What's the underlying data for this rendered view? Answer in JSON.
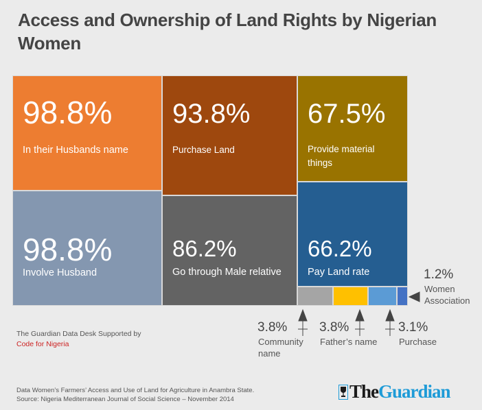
{
  "title": "Access and Ownership of Land Rights by Nigerian Women",
  "chart_data": {
    "type": "treemap",
    "title": "Access and Ownership of Land Rights by Nigerian Women",
    "items": [
      {
        "id": "husbands-name",
        "value": 98.8,
        "value_label": "98.8%",
        "label": "In their Husbands name",
        "color": "#ed7d31"
      },
      {
        "id": "involve-husband",
        "value": 98.8,
        "value_label": "98.8%",
        "label": "Involve Husband",
        "color": "#8497b0"
      },
      {
        "id": "purchase-land",
        "value": 93.8,
        "value_label": "93.8%",
        "label": "Purchase Land",
        "color": "#9e480e"
      },
      {
        "id": "male-relative",
        "value": 86.2,
        "value_label": "86.2%",
        "label": "Go through Male relative",
        "color": "#636363"
      },
      {
        "id": "material-things",
        "value": 67.5,
        "value_label": "67.5%",
        "label": "Provide material things",
        "color": "#997300"
      },
      {
        "id": "pay-land-rate",
        "value": 66.2,
        "value_label": "66.2%",
        "label": "Pay Land rate",
        "color": "#255e91"
      },
      {
        "id": "community-name",
        "value": 3.8,
        "value_label": "3.8%",
        "label": "Community name",
        "color": "#a5a5a5"
      },
      {
        "id": "fathers-name",
        "value": 3.8,
        "value_label": "3.8%",
        "label": "Father’s name",
        "color": "#ffc000"
      },
      {
        "id": "purchase",
        "value": 3.1,
        "value_label": "3.1%",
        "label": "Purchase",
        "color": "#5b9bd5"
      },
      {
        "id": "women-association",
        "value": 1.2,
        "value_label": "1.2%",
        "label": "Women Association",
        "color": "#4472c4"
      }
    ]
  },
  "credit": {
    "line1": "The Guardian Data Desk Supported by",
    "line2": "Code for Nigeria"
  },
  "source": {
    "line1": "Data  Women’s Farmers’ Access and Use of Land for Agriculture in Anambra State.",
    "line2": "Source: Nigeria  Mediterranean Journal of Social Science – November 2014"
  },
  "logo": {
    "the": "The",
    "guardian": "Guardian"
  }
}
